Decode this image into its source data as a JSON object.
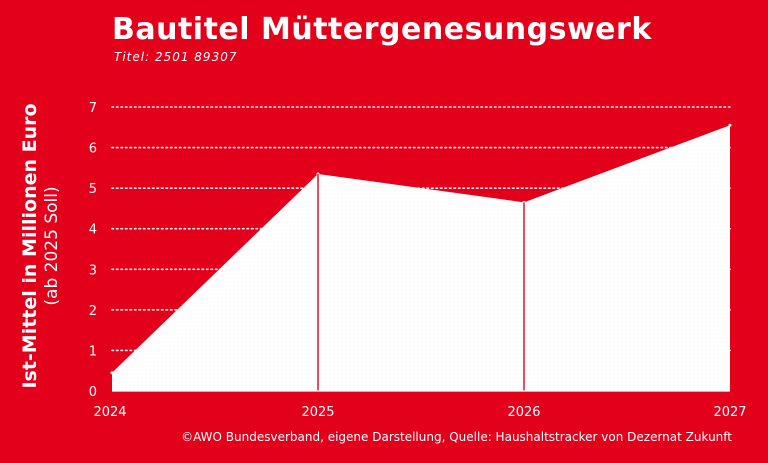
{
  "chart_data": {
    "type": "area",
    "title": "Bautitel Müttergenesungswerk",
    "subtitle": "Titel: 2501 89307",
    "ylabel": [
      "Ist-Mittel in Millionen Euro",
      "(ab 2025 Soll)"
    ],
    "xlabel": "",
    "x": [
      "2024",
      "2025",
      "2026",
      "2027"
    ],
    "values": [
      0.45,
      5.35,
      4.65,
      6.55
    ],
    "ylim": [
      0,
      7
    ],
    "yticks": [
      "0",
      "1",
      "2",
      "3",
      "4",
      "5",
      "6",
      "7"
    ],
    "grid": "horizontal dotted",
    "legend": "none",
    "source": "©AWO Bundesverband, eigene Darstellung, Quelle: Haushaltstracker von Dezernat Zukunft"
  },
  "colors": {
    "background": "#e3001b",
    "area": "#ffffff",
    "text": "#ffffff",
    "divider": "#e3001b"
  }
}
